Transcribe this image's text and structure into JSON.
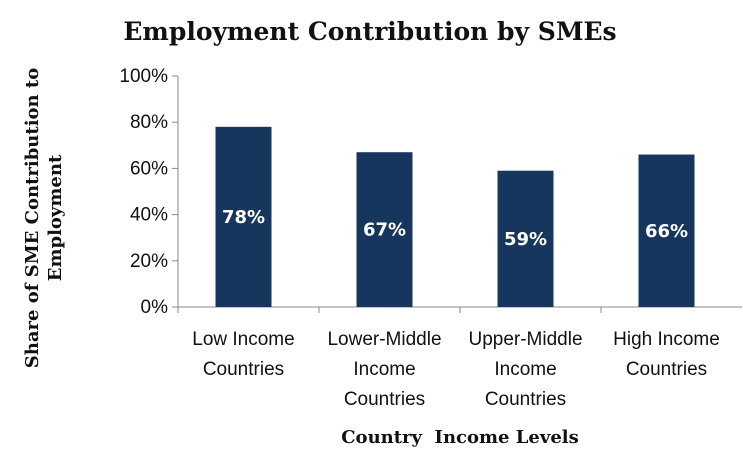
{
  "chart_data": {
    "type": "bar",
    "title": "Employment Contribution by SMEs",
    "xlabel": "Country  Income Levels",
    "ylabel": [
      "Share of SME Contribution to",
      "Employment"
    ],
    "categories": [
      [
        "Low Income",
        "Countries"
      ],
      [
        "Lower-Middle",
        "Income",
        "Countries"
      ],
      [
        "Upper-Middle",
        "Income",
        "Countries"
      ],
      [
        "High Income",
        "Countries"
      ]
    ],
    "values": [
      78,
      67,
      59,
      66
    ],
    "data_labels": [
      "78%",
      "67%",
      "59%",
      "66%"
    ],
    "yticks": [
      "0%",
      "20%",
      "40%",
      "60%",
      "80%",
      "100%"
    ],
    "ylim": [
      0,
      100
    ],
    "grid": false,
    "bar_color": "#17365d"
  }
}
